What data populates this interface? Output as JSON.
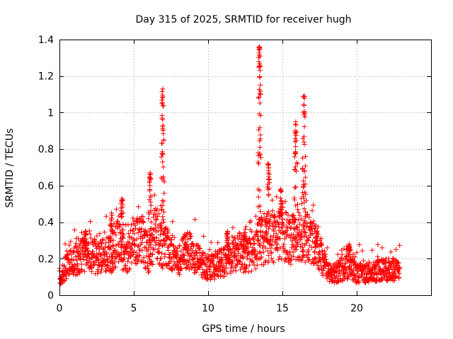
{
  "chart_data": {
    "type": "scatter",
    "title": "Day 315 of 2025, SRMTID for receiver hugh",
    "xlabel": "GPS time / hours",
    "ylabel": "SRMTID / TECUs",
    "xlim": [
      0,
      25
    ],
    "ylim": [
      0,
      1.4
    ],
    "x_ticks": [
      0,
      5,
      10,
      15,
      20
    ],
    "x_tick_labels": [
      "0",
      "5",
      "10",
      "15",
      "20"
    ],
    "y_ticks": [
      0,
      0.2,
      0.4,
      0.6,
      0.8,
      1.0,
      1.2,
      1.4
    ],
    "y_tick_labels": [
      "0",
      "0.2",
      "0.4",
      "0.6",
      "0.8",
      "1",
      "1.2",
      "1.4"
    ],
    "grid": true,
    "marker": "plus",
    "color": "#ff0000",
    "x_range_of_data": [
      0,
      22.9
    ],
    "baseline_profile": [
      [
        0.0,
        0.1
      ],
      [
        0.5,
        0.16
      ],
      [
        1.0,
        0.18
      ],
      [
        1.5,
        0.22
      ],
      [
        2.0,
        0.25
      ],
      [
        2.5,
        0.2
      ],
      [
        3.0,
        0.22
      ],
      [
        3.5,
        0.22
      ],
      [
        4.0,
        0.3
      ],
      [
        4.5,
        0.2
      ],
      [
        5.0,
        0.3
      ],
      [
        5.5,
        0.32
      ],
      [
        6.0,
        0.22
      ],
      [
        6.5,
        0.35
      ],
      [
        7.0,
        0.25
      ],
      [
        7.5,
        0.25
      ],
      [
        8.0,
        0.18
      ],
      [
        8.5,
        0.25
      ],
      [
        9.0,
        0.22
      ],
      [
        9.5,
        0.18
      ],
      [
        10.0,
        0.15
      ],
      [
        10.5,
        0.16
      ],
      [
        11.0,
        0.18
      ],
      [
        11.5,
        0.2
      ],
      [
        12.0,
        0.24
      ],
      [
        12.5,
        0.22
      ],
      [
        13.0,
        0.22
      ],
      [
        13.5,
        0.3
      ],
      [
        14.0,
        0.3
      ],
      [
        14.5,
        0.33
      ],
      [
        15.0,
        0.35
      ],
      [
        15.5,
        0.3
      ],
      [
        16.0,
        0.35
      ],
      [
        16.5,
        0.32
      ],
      [
        17.0,
        0.3
      ],
      [
        17.5,
        0.25
      ],
      [
        18.0,
        0.12
      ],
      [
        18.5,
        0.12
      ],
      [
        19.0,
        0.14
      ],
      [
        19.5,
        0.16
      ],
      [
        20.0,
        0.12
      ],
      [
        20.5,
        0.12
      ],
      [
        21.0,
        0.13
      ],
      [
        21.5,
        0.14
      ],
      [
        22.0,
        0.14
      ],
      [
        22.5,
        0.14
      ],
      [
        22.9,
        0.12
      ]
    ],
    "peaks": [
      {
        "x": 1.75,
        "y": 0.35
      },
      {
        "x": 3.5,
        "y": 0.45
      },
      {
        "x": 4.2,
        "y": 0.53
      },
      {
        "x": 6.1,
        "y": 0.67
      },
      {
        "x": 6.95,
        "y": 1.13
      },
      {
        "x": 8.5,
        "y": 0.29
      },
      {
        "x": 11.3,
        "y": 0.35
      },
      {
        "x": 12.5,
        "y": 0.36
      },
      {
        "x": 13.45,
        "y": 1.36
      },
      {
        "x": 14.05,
        "y": 0.72
      },
      {
        "x": 14.9,
        "y": 0.58
      },
      {
        "x": 15.9,
        "y": 0.95
      },
      {
        "x": 16.45,
        "y": 1.09
      },
      {
        "x": 17.3,
        "y": 0.32
      },
      {
        "x": 19.5,
        "y": 0.28
      }
    ]
  }
}
